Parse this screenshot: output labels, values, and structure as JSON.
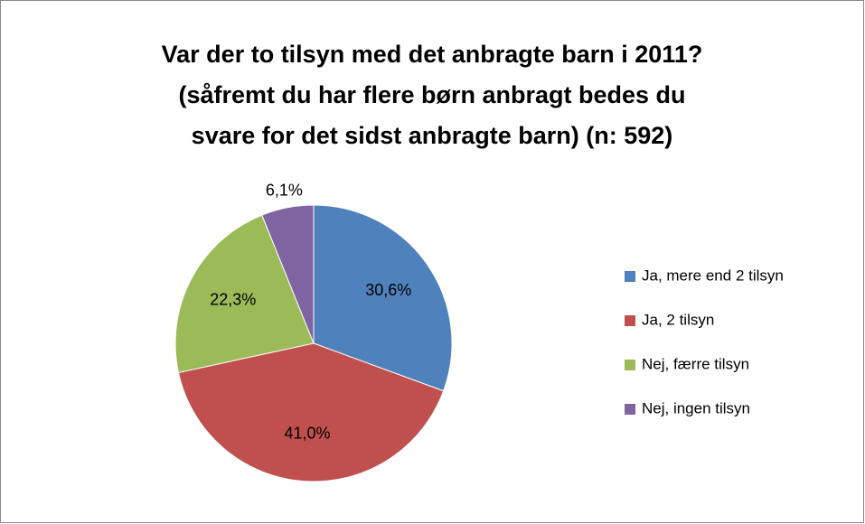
{
  "chart_data": {
    "type": "pie",
    "title": [
      "Var der to tilsyn med det anbragte barn i 2011?",
      "(såfremt du har flere børn anbragt bedes du",
      "svare for det sidst anbragte barn) (n: 592)"
    ],
    "categories": [
      "Ja, mere end 2 tilsyn",
      "Ja, 2 tilsyn",
      "Nej, færre tilsyn",
      "Nej, ingen tilsyn"
    ],
    "values": [
      30.6,
      41.0,
      22.3,
      6.1
    ],
    "value_labels": [
      "30,6%",
      "41,0%",
      "22,3%",
      "6,1%"
    ],
    "colors": [
      "#4f81bd",
      "#c0504d",
      "#9bbb59",
      "#8064a2"
    ],
    "legend": "right"
  }
}
